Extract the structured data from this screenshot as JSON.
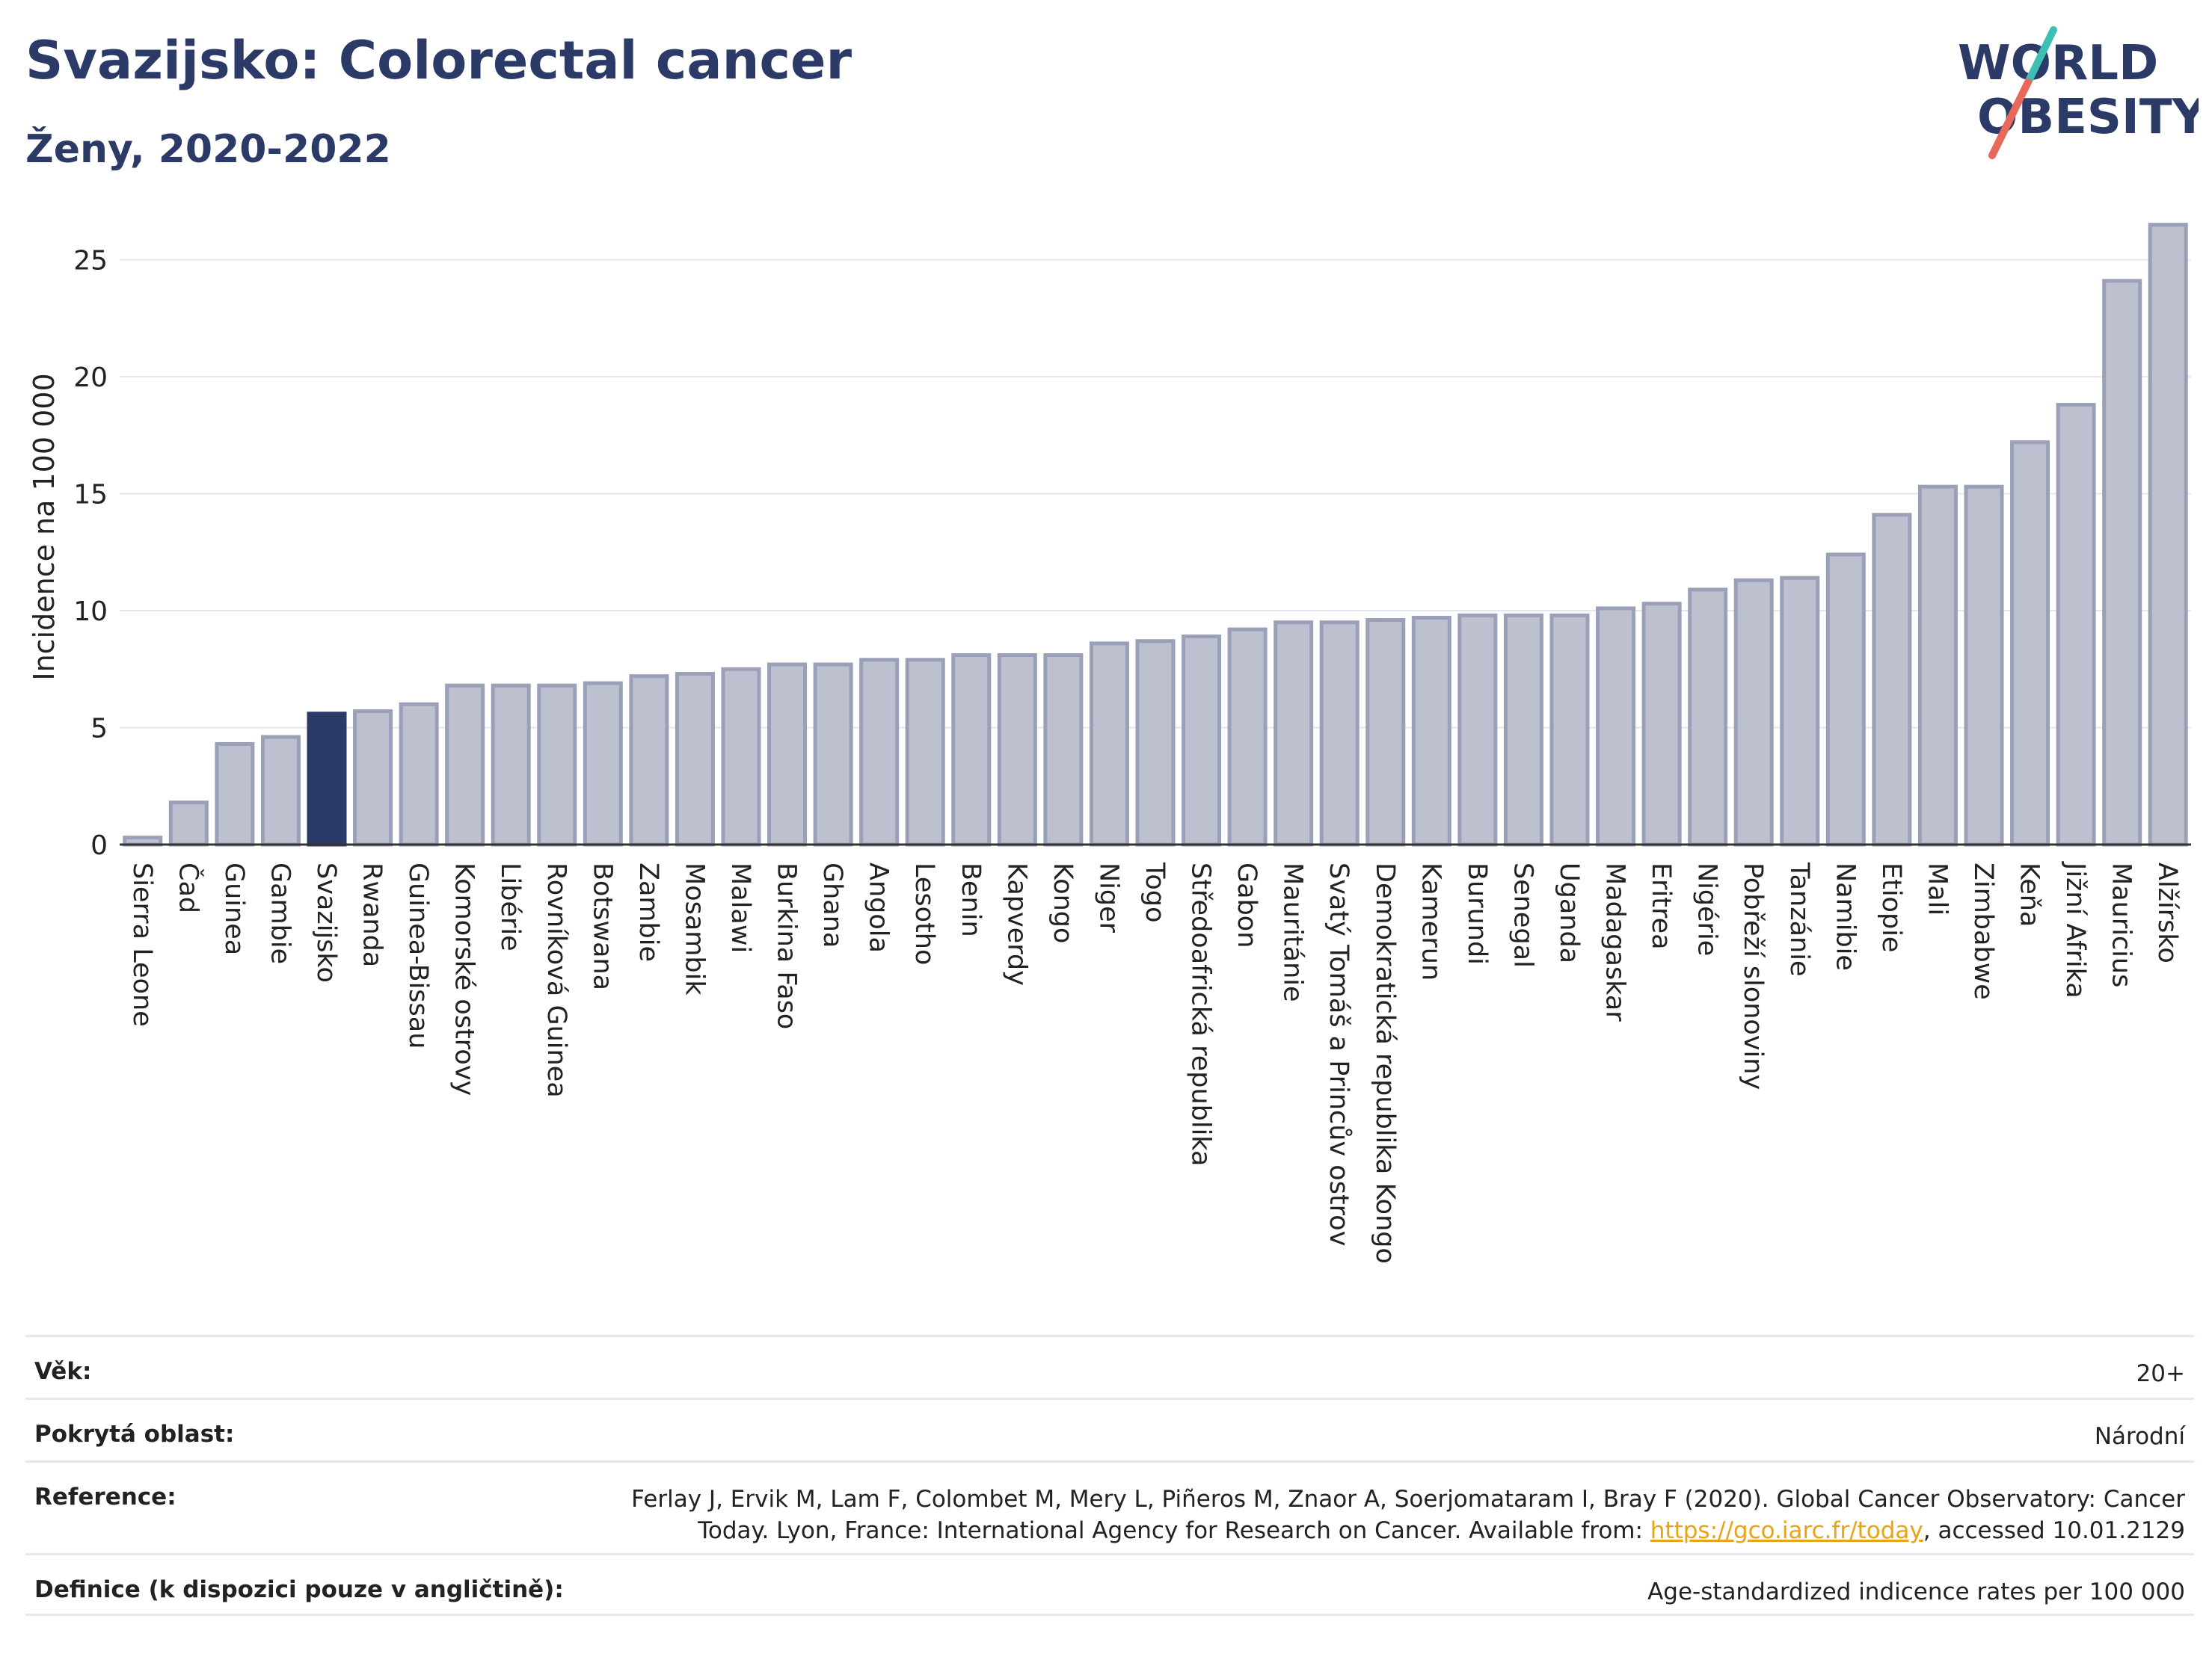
{
  "header": {
    "title": "Svazijsko: Colorectal cancer",
    "subtitle": "Ženy, 2020-2022"
  },
  "logo": {
    "line1": "WORLD",
    "line2": "OBESITY"
  },
  "colors": {
    "highlight": "#2b3a67",
    "bar": "#bcc0cf",
    "bar_stroke": "#9aa0b8",
    "title": "#2b3a67",
    "logo_red": "#e8685a",
    "logo_teal": "#3fbfb3",
    "link": "#e8a317"
  },
  "chart_data": {
    "type": "bar",
    "ylabel": "Incidence na 100 000",
    "ylim": [
      0,
      27
    ],
    "yticks": [
      0,
      5,
      10,
      15,
      20,
      25
    ],
    "grid": true,
    "highlight": "Svazijsko",
    "categories": [
      "Sierra Leone",
      "Čad",
      "Guinea",
      "Gambie",
      "Svazijsko",
      "Rwanda",
      "Guinea-Bissau",
      "Komorské ostrovy",
      "Libérie",
      "Rovníková Guinea",
      "Botswana",
      "Zambie",
      "Mosambik",
      "Malawi",
      "Burkina Faso",
      "Ghana",
      "Angola",
      "Lesotho",
      "Benin",
      "Kapverdy",
      "Kongo",
      "Niger",
      "Togo",
      "Středoafrická republika",
      "Gabon",
      "Mauritánie",
      "Svatý Tomáš a Princův ostrov",
      "Demokratická republika Kongo",
      "Kamerun",
      "Burundi",
      "Senegal",
      "Uganda",
      "Madagaskar",
      "Eritrea",
      "Nigérie",
      "Pobřeží slonoviny",
      "Tanzánie",
      "Namibie",
      "Etiopie",
      "Mali",
      "Zimbabwe",
      "Keňa",
      "Jižní Afrika",
      "Mauricius",
      "Alžírsko"
    ],
    "values": [
      0.3,
      1.8,
      4.3,
      4.6,
      5.6,
      5.7,
      6.0,
      6.8,
      6.8,
      6.8,
      6.9,
      7.2,
      7.3,
      7.5,
      7.7,
      7.7,
      7.9,
      7.9,
      8.1,
      8.1,
      8.1,
      8.6,
      8.7,
      8.9,
      9.2,
      9.5,
      9.5,
      9.6,
      9.7,
      9.8,
      9.8,
      9.8,
      10.1,
      10.3,
      10.9,
      11.3,
      11.4,
      12.4,
      14.1,
      15.3,
      15.3,
      17.2,
      18.8,
      24.1,
      26.5
    ]
  },
  "meta": {
    "rows": [
      {
        "label": "Věk:",
        "value": "20+"
      },
      {
        "label": "Pokrytá oblast:",
        "value": "Národní"
      },
      {
        "label": "Reference:",
        "value_line1": "Ferlay J, Ervik M, Lam F, Colombet M, Mery L, Piñeros M, Znaor A, Soerjomataram I, Bray F (2020). Global Cancer Observatory: Cancer",
        "value_line2_pre": "Today. Lyon, France: International Agency for Research on Cancer. Available from: ",
        "link": "https://gco.iarc.fr/today",
        "value_line2_post": ", accessed 10.01.2129"
      },
      {
        "label": "Definice (k dispozici pouze v angličtině):",
        "value": "Age-standardized indicence rates per 100 000"
      }
    ]
  }
}
